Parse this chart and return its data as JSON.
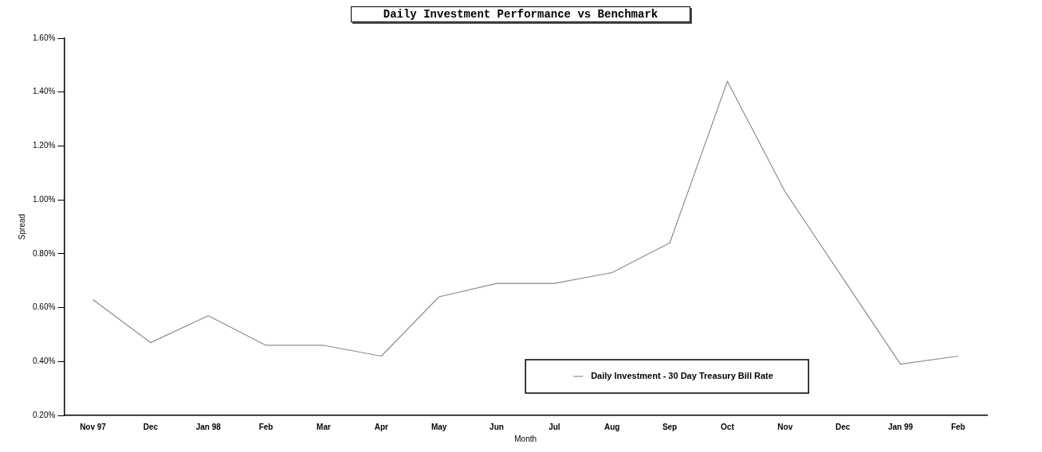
{
  "chart_data": {
    "type": "line",
    "title": "Daily Investment Performance vs Benchmark",
    "xlabel": "Month",
    "ylabel": "Spread",
    "categories": [
      "Nov 97",
      "Dec",
      "Jan 98",
      "Feb",
      "Mar",
      "Apr",
      "May",
      "Jun",
      "Jul",
      "Aug",
      "Sep",
      "Oct",
      "Nov",
      "Dec",
      "Jan 99",
      "Feb"
    ],
    "series": [
      {
        "name": "Daily Investment - 30 Day Treasury Bill Rate",
        "color": "#8c8c8c",
        "values": [
          0.63,
          0.47,
          0.57,
          0.46,
          0.46,
          0.42,
          0.64,
          0.69,
          0.69,
          0.73,
          0.84,
          1.44,
          1.03,
          0.71,
          0.39,
          0.42
        ]
      }
    ],
    "ylim": [
      0.2,
      1.6
    ],
    "yticks": [
      {
        "value": 0.2,
        "label": "0.20%"
      },
      {
        "value": 0.4,
        "label": "0.40%"
      },
      {
        "value": 0.6,
        "label": "0.60%"
      },
      {
        "value": 0.8,
        "label": "0.80%"
      },
      {
        "value": 1.0,
        "label": "1.00%"
      },
      {
        "value": 1.2,
        "label": "1.20%"
      },
      {
        "value": 1.4,
        "label": "1.40%"
      },
      {
        "value": 1.6,
        "label": "1.60%"
      }
    ],
    "grid": false,
    "legend": "bottom right",
    "marker": "none",
    "line_style": "solid"
  }
}
